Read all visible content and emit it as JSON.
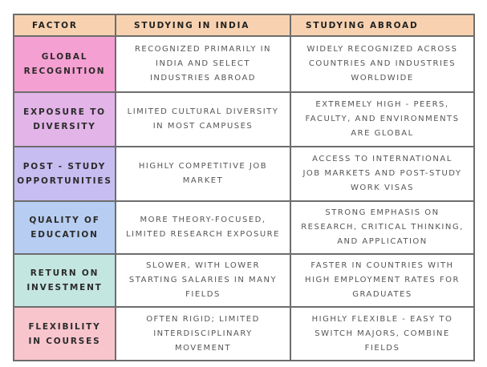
{
  "table": {
    "header": [
      "FACTOR",
      "STUDYING IN INDIA",
      "STUDYING ABROAD"
    ],
    "rows": [
      [
        [
          "GLOBAL",
          "RECOGNITION"
        ],
        [
          "RECOGNIZED PRIMARILY IN",
          "INDIA AND SELECT",
          "INDUSTRIES ABROAD"
        ],
        [
          "WIDELY RECOGNIZED ACROSS",
          "COUNTRIES AND INDUSTRIES",
          "WORLDWIDE"
        ]
      ],
      [
        [
          "EXPOSURE TO",
          "DIVERSITY"
        ],
        [
          "LIMITED CULTURAL DIVERSITY",
          "IN MOST CAMPUSES"
        ],
        [
          "EXTREMELY HIGH - PEERS,",
          "FACULTY, AND ENVIRONMENTS",
          "ARE GLOBAL"
        ]
      ],
      [
        [
          "POST - STUDY",
          "OPPORTUNITIES"
        ],
        [
          "HIGHLY COMPETITIVE JOB",
          "MARKET"
        ],
        [
          "ACCESS TO INTERNATIONAL",
          "JOB MARKETS AND POST-STUDY",
          "WORK VISAS"
        ]
      ],
      [
        [
          "QUALITY OF",
          "EDUCATION"
        ],
        [
          "MORE THEORY-FOCUSED,",
          "LIMITED RESEARCH EXPOSURE"
        ],
        [
          "STRONG EMPHASIS ON",
          "RESEARCH, CRITICAL THINKING,",
          "AND APPLICATION"
        ]
      ],
      [
        [
          "RETURN ON",
          "INVESTMENT"
        ],
        [
          "SLOWER, WITH LOWER",
          "STARTING SALARIES IN MANY",
          "FIELDS"
        ],
        [
          "FASTER IN COUNTRIES WITH",
          "HIGH EMPLOYMENT RATES FOR",
          "GRADUATES"
        ]
      ],
      [
        [
          "FLEXIBILITY",
          "IN COURSES"
        ],
        [
          "OFTEN RIGID; LIMITED",
          "INTERDISCIPLINARY",
          "MOVEMENT"
        ],
        [
          "HIGHLY FLEXIBLE - EASY TO",
          "SWITCH MAJORS, COMBINE",
          "FIELDS"
        ]
      ]
    ]
  }
}
